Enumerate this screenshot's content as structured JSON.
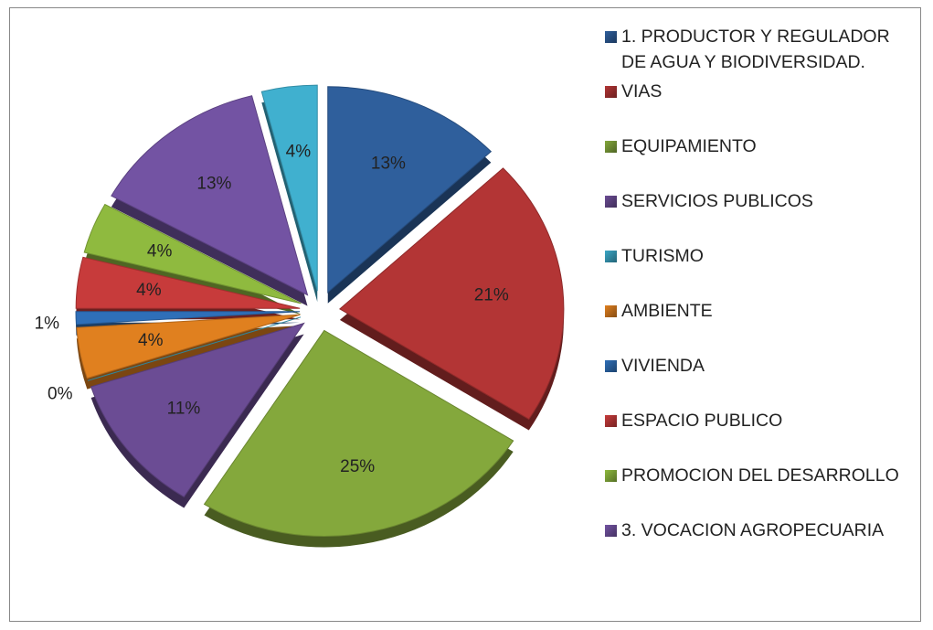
{
  "chart_data": {
    "type": "pie",
    "categories": [
      "1. PRODUCTOR Y REGULADOR DE AGUA Y BIODIVERSIDAD.",
      "VIAS",
      "EQUIPAMIENTO",
      "SERVICIOS PUBLICOS",
      "TURISMO",
      "AMBIENTE",
      "VIVIENDA",
      "ESPACIO PUBLICO",
      "PROMOCION DEL DESARROLLO",
      "3. VOCACION AGROPECUARIA",
      null
    ],
    "values": [
      13,
      21,
      25,
      11,
      0,
      4,
      1,
      4,
      4,
      13,
      4
    ],
    "value_labels": [
      "13%",
      "21%",
      "25%",
      "11%",
      "0%",
      "4%",
      "1%",
      "4%",
      "4%",
      "13%",
      "4%"
    ],
    "colors": [
      "#2f5f9c",
      "#b33535",
      "#84a83c",
      "#6b4c94",
      "#3ba7c6",
      "#e0801f",
      "#2f6fb8",
      "#c73b3b",
      "#8fba3f",
      "#7353a3",
      "#40b0cf"
    ],
    "legend": "right"
  }
}
